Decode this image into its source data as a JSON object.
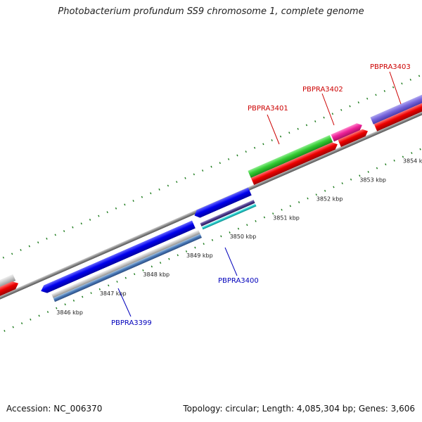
{
  "title": "Photobacterium profundum SS9 chromosome 1, complete genome",
  "footer": {
    "accession": "Accession: NC_006370",
    "summary": "Topology: circular; Length: 4,085,304 bp; Genes: 3,606"
  },
  "colors": {
    "backbone": "#888888",
    "tick": "#1a7a1a",
    "label_forward": "#cc0000",
    "label_reverse": "#0000bb"
  },
  "tick_labels": [
    "3846 kbp",
    "3847 kbp",
    "3848 kbp",
    "3849 kbp",
    "3850 kbp",
    "3851 kbp",
    "3852 kbp",
    "3853 kbp",
    "3854 kbp"
  ],
  "gene_labels": [
    {
      "name": "PBPRA3399",
      "strand": "reverse"
    },
    {
      "name": "PBPRA3400",
      "strand": "reverse"
    },
    {
      "name": "PBPRA3401",
      "strand": "forward"
    },
    {
      "name": "PBPRA3402",
      "strand": "forward"
    },
    {
      "name": "PBPRA3403",
      "strand": "forward"
    }
  ]
}
